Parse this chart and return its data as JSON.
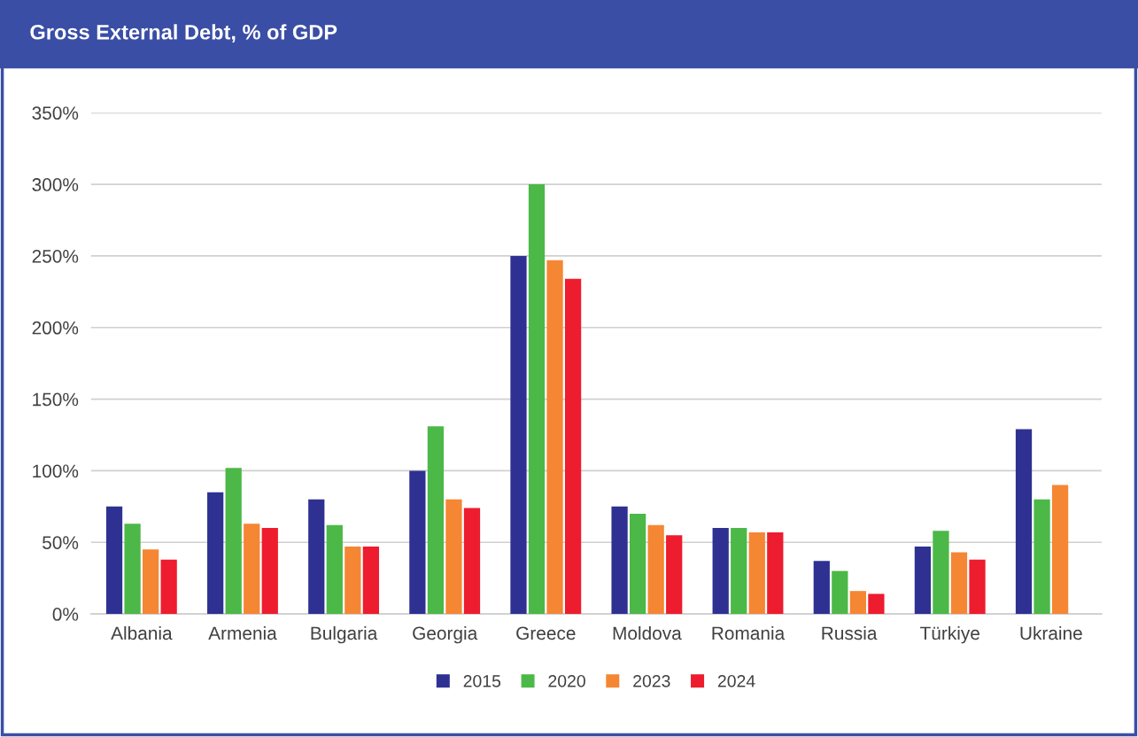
{
  "chart_data": {
    "type": "bar",
    "title": "Gross External Debt, % of GDP",
    "categories": [
      "Albania",
      "Armenia",
      "Bulgaria",
      "Georgia",
      "Greece",
      "Moldova",
      "Romania",
      "Russia",
      "Türkiye",
      "Ukraine"
    ],
    "series": [
      {
        "name": "2015",
        "color": "#2e3192",
        "values": [
          75,
          85,
          80,
          100,
          250,
          75,
          60,
          37,
          47,
          129
        ]
      },
      {
        "name": "2020",
        "color": "#4cb848",
        "values": [
          63,
          102,
          62,
          131,
          300,
          70,
          60,
          30,
          58,
          80
        ]
      },
      {
        "name": "2023",
        "color": "#f58634",
        "values": [
          45,
          63,
          47,
          80,
          247,
          62,
          57,
          16,
          43,
          90
        ]
      },
      {
        "name": "2024",
        "color": "#ed1c2e",
        "values": [
          38,
          60,
          47,
          74,
          234,
          55,
          57,
          14,
          38,
          null
        ]
      }
    ],
    "ylim": [
      0,
      350
    ],
    "yticks": [
      {
        "value": 0,
        "label": "0%"
      },
      {
        "value": 50,
        "label": "50%"
      },
      {
        "value": 100,
        "label": "100%"
      },
      {
        "value": 150,
        "label": "150%"
      },
      {
        "value": 200,
        "label": "200%"
      },
      {
        "value": 250,
        "label": "250%"
      },
      {
        "value": 300,
        "label": "300%"
      },
      {
        "value": 350,
        "label": "350%"
      }
    ],
    "grid": "y",
    "legend": "bottom"
  }
}
